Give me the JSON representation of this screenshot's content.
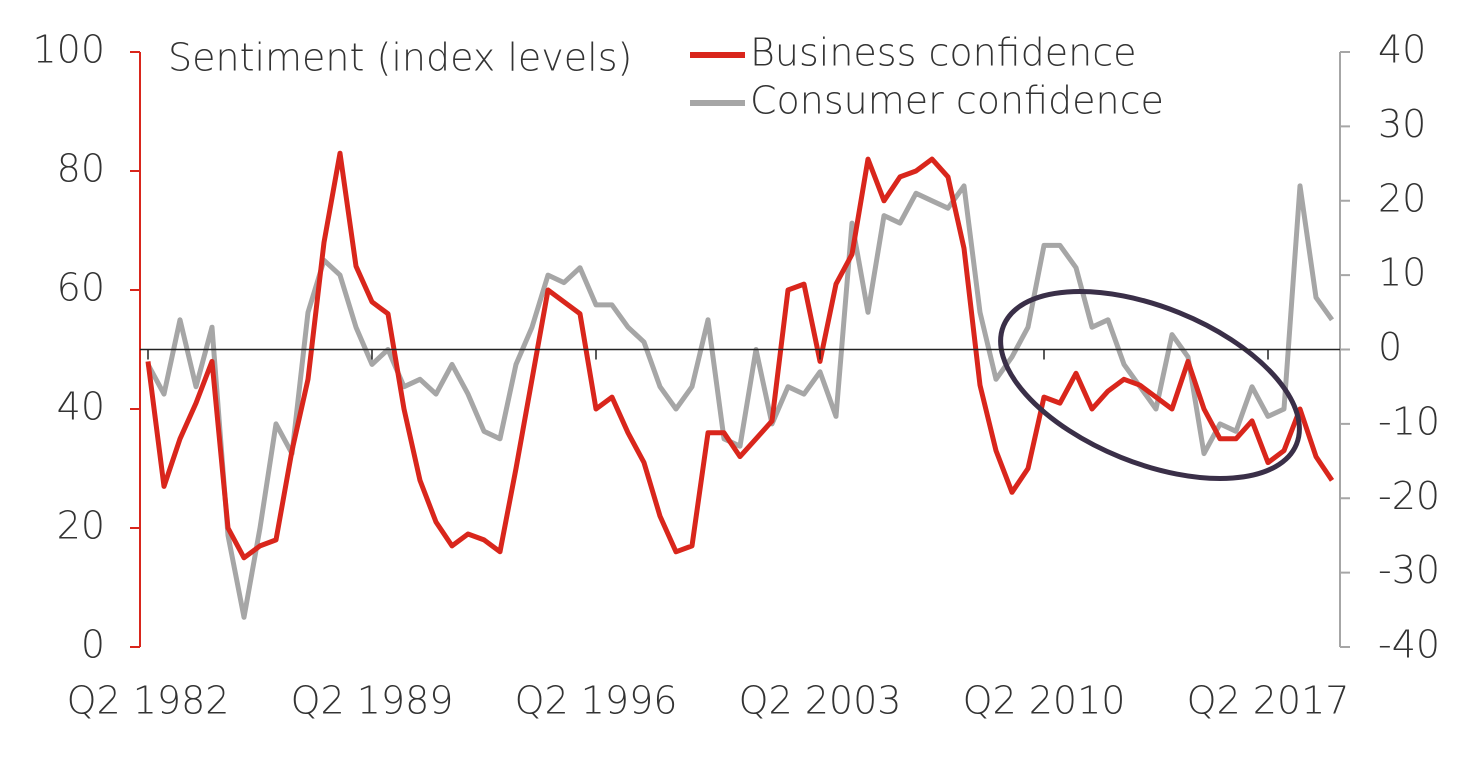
{
  "chart_data": {
    "type": "line",
    "title": "Sentiment (index levels)",
    "x": [
      1982.25,
      1982.75,
      1983.25,
      1983.75,
      1984.25,
      1984.75,
      1985.25,
      1985.75,
      1986.25,
      1986.75,
      1987.25,
      1987.75,
      1988.25,
      1988.75,
      1989.25,
      1989.75,
      1990.25,
      1990.75,
      1991.25,
      1991.75,
      1992.25,
      1992.75,
      1993.25,
      1993.75,
      1994.25,
      1994.75,
      1995.25,
      1995.75,
      1996.25,
      1996.75,
      1997.25,
      1997.75,
      1998.25,
      1998.75,
      1999.25,
      1999.75,
      2000.25,
      2000.75,
      2001.25,
      2001.75,
      2002.25,
      2002.75,
      2003.25,
      2003.75,
      2004.25,
      2004.75,
      2005.25,
      2005.75,
      2006.25,
      2006.75,
      2007.25,
      2007.75,
      2008.25,
      2008.75,
      2009.25,
      2009.75,
      2010.25,
      2010.75,
      2011.25,
      2011.75,
      2012.25,
      2012.75,
      2013.25,
      2013.75,
      2014.25,
      2014.75,
      2015.25,
      2015.75,
      2016.25,
      2016.75,
      2017.25,
      2017.75,
      2018.25,
      2018.75,
      2019.25
    ],
    "series": [
      {
        "name": "Business confidence",
        "color": "#d9261c",
        "values": [
          48,
          27,
          35,
          41,
          48,
          20,
          15,
          17,
          18,
          33,
          45,
          68,
          83,
          64,
          58,
          56,
          40,
          28,
          21,
          17,
          19,
          18,
          16,
          30,
          45,
          60,
          58,
          56,
          40,
          42,
          36,
          31,
          22,
          16,
          17,
          36,
          36,
          32,
          35,
          38,
          60,
          61,
          48,
          61,
          66,
          82,
          75,
          79,
          80,
          82,
          79,
          67,
          44,
          33,
          26,
          30,
          42,
          41,
          46,
          40,
          43,
          45,
          44,
          42,
          40,
          48,
          40,
          35,
          35,
          38,
          31,
          33,
          40,
          32,
          28
        ]
      },
      {
        "name": "Consumer confidence",
        "color": "#a6a6a6",
        "axis": "y2",
        "values": [
          -2,
          -6,
          4,
          -5,
          3,
          -25,
          -36,
          -24,
          -10,
          -14,
          5,
          12,
          10,
          3,
          -2,
          0,
          -5,
          -4,
          -6,
          -2,
          -6,
          -11,
          -12,
          -2,
          3,
          10,
          9,
          11,
          6,
          6,
          3,
          1,
          -5,
          -8,
          -5,
          4,
          -12,
          -13,
          0,
          -10,
          -5,
          -6,
          -3,
          -9,
          17,
          5,
          18,
          17,
          21,
          20,
          19,
          22,
          5,
          -4,
          -1,
          3,
          14,
          14,
          11,
          3,
          4,
          -2,
          -5,
          -8,
          2,
          -1,
          -14,
          -10,
          -11,
          -5,
          -9,
          -8,
          22,
          7,
          4
        ]
      }
    ],
    "xlim": [
      1982,
      2019.5
    ],
    "xticks": [
      {
        "value": 1982.25,
        "label": "Q2 1982"
      },
      {
        "value": 1989.25,
        "label": "Q2 1989"
      },
      {
        "value": 1996.25,
        "label": "Q2 1996"
      },
      {
        "value": 2003.25,
        "label": "Q2 2003"
      },
      {
        "value": 2010.25,
        "label": "Q2 2010"
      },
      {
        "value": 2017.25,
        "label": "Q2 2017"
      }
    ],
    "ylim": [
      0,
      100
    ],
    "yticks": [
      0,
      20,
      40,
      60,
      80,
      100
    ],
    "y2lim": [
      -40,
      40
    ],
    "y2ticks": [
      -40,
      -30,
      -20,
      -10,
      0,
      10,
      20,
      30,
      40
    ],
    "reference_line": 50,
    "y_axis_color": "#d9261c",
    "y2_axis_color": "#a6a6a6"
  }
}
